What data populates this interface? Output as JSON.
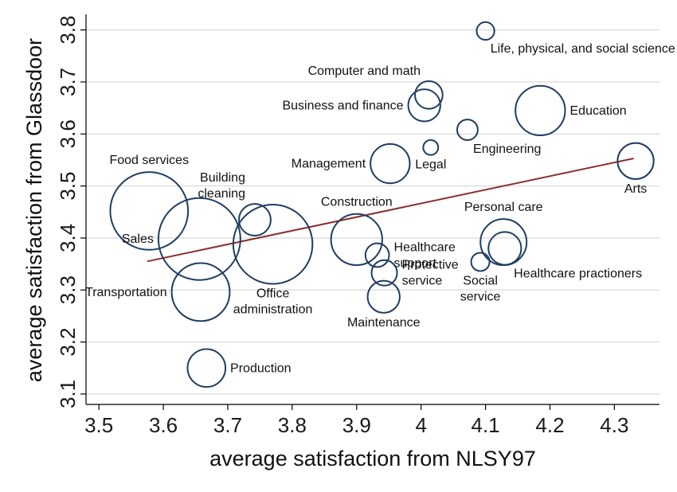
{
  "chart_data": {
    "type": "scatter",
    "title": "",
    "xlabel": "average satisfaction from NLSY97",
    "ylabel": "average satisfaction from Glassdoor",
    "xlim": [
      3.48,
      4.37
    ],
    "ylim": [
      3.08,
      3.83
    ],
    "xticks": [
      3.5,
      3.6,
      3.7,
      3.8,
      3.9,
      4.0,
      4.1,
      4.2,
      4.3
    ],
    "xtick_labels": [
      "3.5",
      "3.6",
      "3.7",
      "3.8",
      "3.9",
      "4",
      "4.1",
      "4.2",
      "4.3"
    ],
    "yticks": [
      3.1,
      3.2,
      3.3,
      3.4,
      3.5,
      3.6,
      3.7,
      3.8
    ],
    "ytick_labels": [
      "3.1",
      "3.2",
      "3.3",
      "3.4",
      "3.5",
      "3.6",
      "3.7",
      "3.8"
    ],
    "grid": true,
    "marker_style": "hollow-circle sized by weight",
    "marker_color": "#1f3d63",
    "fit_color": "#8b2f2f",
    "fit_line": {
      "x": [
        3.575,
        4.33
      ],
      "y": [
        3.355,
        3.553
      ]
    },
    "points": [
      {
        "name": "Life, physical, and social science",
        "label_lines": [
          "Life, physical, and social science"
        ],
        "x": 4.1,
        "y": 3.798,
        "size": 1.4,
        "label_pos": "below-right"
      },
      {
        "name": "Computer and math",
        "label_lines": [
          "Computer and math"
        ],
        "x": 4.012,
        "y": 3.675,
        "size": 3.4,
        "label_pos": "above-left"
      },
      {
        "name": "Business and finance",
        "label_lines": [
          "Business and finance"
        ],
        "x": 4.005,
        "y": 3.655,
        "size": 4.6,
        "label_pos": "left"
      },
      {
        "name": "Education",
        "label_lines": [
          "Education"
        ],
        "x": 4.185,
        "y": 3.645,
        "size": 11,
        "label_pos": "right"
      },
      {
        "name": "Engineering",
        "label_lines": [
          "Engineering"
        ],
        "x": 4.072,
        "y": 3.608,
        "size": 1.9,
        "label_pos": "below-right"
      },
      {
        "name": "Legal",
        "label_lines": [
          "Legal"
        ],
        "x": 4.015,
        "y": 3.574,
        "size": 1.0,
        "label_pos": "below"
      },
      {
        "name": "Management",
        "label_lines": [
          "Management"
        ],
        "x": 3.952,
        "y": 3.543,
        "size": 6.9,
        "label_pos": "left"
      },
      {
        "name": "Arts",
        "label_lines": [
          "Arts"
        ],
        "x": 4.333,
        "y": 3.548,
        "size": 5.8,
        "label_pos": "below"
      },
      {
        "name": "Food services",
        "label_lines": [
          "Food services"
        ],
        "x": 3.578,
        "y": 3.452,
        "size": 27,
        "label_pos": "above"
      },
      {
        "name": "Building cleaning",
        "label_lines": [
          "Building",
          "cleaning"
        ],
        "x": 3.742,
        "y": 3.435,
        "size": 4.5,
        "label_pos": "above-left"
      },
      {
        "name": "Sales",
        "label_lines": [
          "Sales"
        ],
        "x": 3.656,
        "y": 3.398,
        "size": 30,
        "label_pos": "left"
      },
      {
        "name": "Office administration",
        "label_lines": [
          "Office",
          "administration"
        ],
        "x": 3.77,
        "y": 3.388,
        "size": 28,
        "label_pos": "below"
      },
      {
        "name": "Construction",
        "label_lines": [
          "Construction"
        ],
        "x": 3.9,
        "y": 3.397,
        "size": 11.7,
        "label_pos": "above"
      },
      {
        "name": "Healthcare support",
        "label_lines": [
          "Healthcare",
          "support"
        ],
        "x": 3.932,
        "y": 3.367,
        "size": 2.5,
        "label_pos": "right"
      },
      {
        "name": "Protective service",
        "label_lines": [
          "Protective",
          "service"
        ],
        "x": 3.943,
        "y": 3.333,
        "size": 2.9,
        "label_pos": "right"
      },
      {
        "name": "Personal care",
        "label_lines": [
          "Personal care"
        ],
        "x": 4.128,
        "y": 3.392,
        "size": 9.5,
        "label_pos": "above"
      },
      {
        "name": "Healthcare practioners",
        "label_lines": [
          "Healthcare practioners"
        ],
        "x": 4.13,
        "y": 3.38,
        "size": 4.8,
        "label_pos": "below-right"
      },
      {
        "name": "Social service",
        "label_lines": [
          "Social",
          "service"
        ],
        "x": 4.092,
        "y": 3.354,
        "size": 1.5,
        "label_pos": "below"
      },
      {
        "name": "Transportation",
        "label_lines": [
          "Transportation"
        ],
        "x": 3.658,
        "y": 3.296,
        "size": 15,
        "label_pos": "left"
      },
      {
        "name": "Maintenance",
        "label_lines": [
          "Maintenance"
        ],
        "x": 3.942,
        "y": 3.287,
        "size": 4.6,
        "label_pos": "below"
      },
      {
        "name": "Production",
        "label_lines": [
          "Production"
        ],
        "x": 3.667,
        "y": 3.15,
        "size": 6.4,
        "label_pos": "right"
      }
    ]
  }
}
